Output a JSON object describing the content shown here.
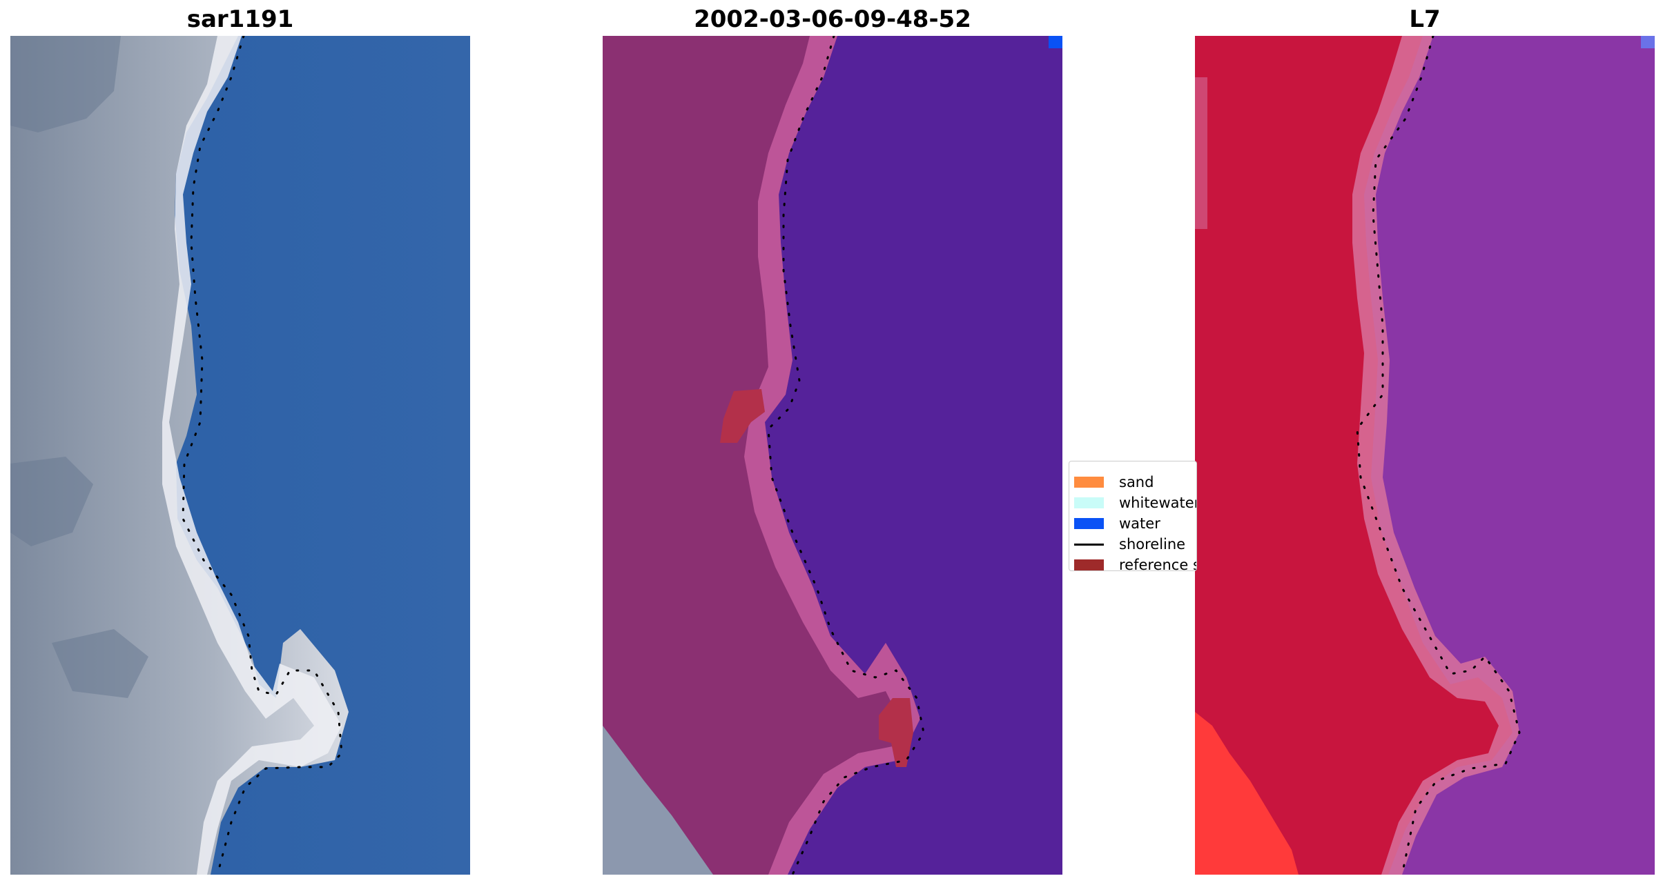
{
  "panels": [
    {
      "title": "sar1191"
    },
    {
      "title": "2002-03-06-09-48-52"
    },
    {
      "title": "L7"
    }
  ],
  "legend": {
    "items": [
      {
        "label": "sand",
        "color": "#ff8c3f"
      },
      {
        "label": "whitewater",
        "color": "#c9fcf8"
      },
      {
        "label": "water",
        "color": "#0a52f5"
      },
      {
        "label": "shoreline",
        "color": "#000000"
      },
      {
        "label": "reference shoreline",
        "color": "#9e2a2a"
      }
    ]
  },
  "colors": {
    "rgb_water": "#2f66aa",
    "rgb_land": "#9aa6b6",
    "classified_water": "#55229a",
    "classified_land": "#8b3072",
    "classified_beach": "#c25a9c",
    "classified_reference": "#b3304a",
    "ndwi_land": "#c8153e",
    "ndwi_water": "#8a36a6",
    "ndwi_beach": "#d8719c",
    "shoreline_dots": "#000000"
  }
}
